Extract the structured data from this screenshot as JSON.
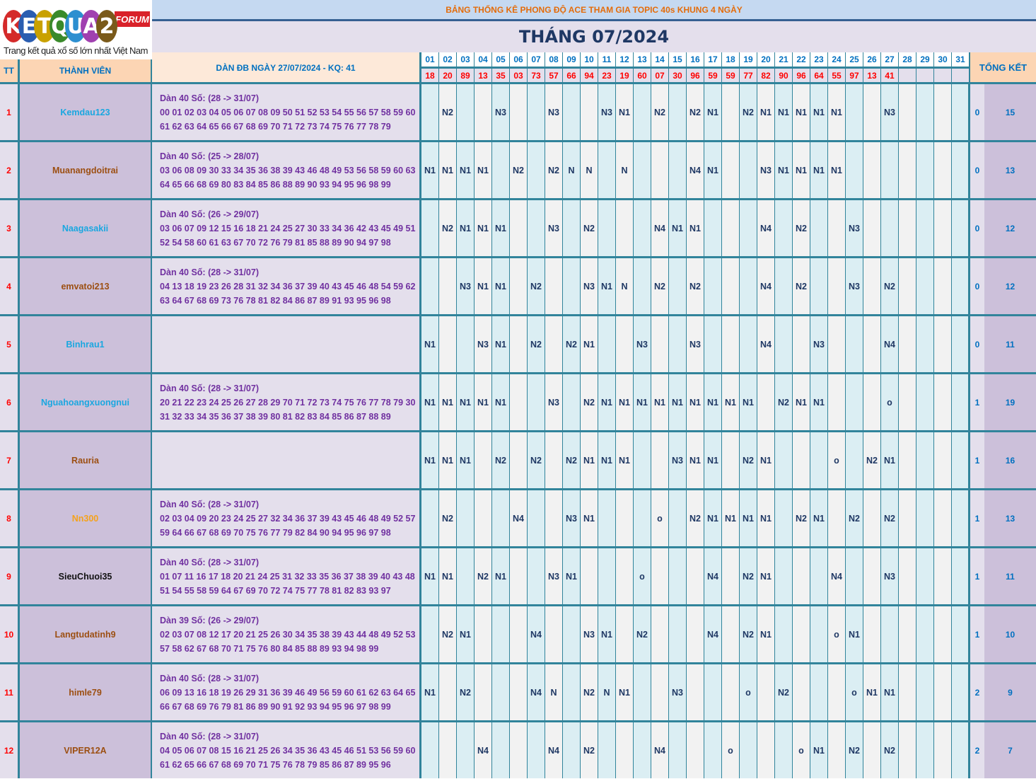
{
  "logo": {
    "letters": [
      "K",
      "E",
      "T",
      "Q",
      "U",
      "A",
      "2"
    ],
    "colors": [
      "#d42a2a",
      "#2a5db0",
      "#c9a100",
      "#3a8a2a",
      "#2c8fd0",
      "#a040b0",
      "#7a5a1a"
    ],
    "badge": "FORUM",
    "tagline": "Trang kết quả xổ số lớn nhất Việt Nam"
  },
  "title": "BẢNG THỐNG KÊ PHONG ĐỘ ACE THAM GIA TOPIC 40s KHUNG 4 NGÀY",
  "month": "THÁNG 07/2024",
  "headers": {
    "tt": "TT",
    "member": "THÀNH VIÊN",
    "dan": "DÀN ĐB NGÀY 27/07/2024 - KQ: 41",
    "summary": "TỔNG KẾT"
  },
  "days": [
    "01",
    "02",
    "03",
    "04",
    "05",
    "06",
    "07",
    "08",
    "09",
    "10",
    "11",
    "12",
    "13",
    "14",
    "15",
    "16",
    "17",
    "18",
    "19",
    "20",
    "21",
    "22",
    "23",
    "24",
    "25",
    "26",
    "27",
    "28",
    "29",
    "30",
    "31"
  ],
  "results": [
    "18",
    "20",
    "89",
    "13",
    "35",
    "03",
    "73",
    "57",
    "66",
    "94",
    "23",
    "19",
    "60",
    "07",
    "30",
    "96",
    "59",
    "59",
    "77",
    "82",
    "90",
    "96",
    "64",
    "55",
    "97",
    "13",
    "41",
    "",
    "",
    "",
    ""
  ],
  "colors": {
    "cyan": "#1aa7e0",
    "brown": "#9c4f12",
    "orange": "#f5a21b",
    "black": "#111111",
    "mark": "#1f3864",
    "result": "#ff0000",
    "day": "#0070c0",
    "grid": "#31849b"
  },
  "rows": [
    {
      "tt": "1",
      "name": "Kemdau123",
      "color": "cyan",
      "dan_title": "Dàn 40 Số: (28 -> 31/07)",
      "dan_l1": "00 01 02 03 04 05 06 07 08 09 50 51 52 53 54 55 56 57 58 59 60",
      "dan_l2": "61 62 63 64 65 66 67 68 69 70 71 72 73 74 75 76 77 78 79",
      "marks": {
        "2": "N2",
        "5": "N3",
        "8": "N3",
        "11": "N3",
        "12": "N1",
        "14": "N2",
        "16": "N2",
        "17": "N1",
        "19": "N2",
        "20": "N1",
        "21": "N1",
        "22": "N1",
        "23": "N1",
        "24": "N1",
        "27": "N3"
      },
      "zero": "0",
      "total": "15"
    },
    {
      "tt": "2",
      "name": "Muanangdoitrai",
      "color": "brown",
      "dan_title": "Dàn 40 Số: (25 -> 28/07)",
      "dan_l1": "03 06 08 09 30 33 34 35 36 38 39 43 46 48 49 53 56 58 59 60 63",
      "dan_l2": "64 65 66 68 69 80 83 84 85 86 88 89 90 93 94 95 96 98 99",
      "marks": {
        "1": "N1",
        "2": "N1",
        "3": "N1",
        "4": "N1",
        "6": "N2",
        "8": "N2",
        "9": "N",
        "10": "N",
        "12": "N",
        "16": "N4",
        "17": "N1",
        "20": "N3",
        "21": "N1",
        "22": "N1",
        "23": "N1",
        "24": "N1"
      },
      "zero": "0",
      "total": "13"
    },
    {
      "tt": "3",
      "name": "Naagasakii",
      "color": "cyan",
      "dan_title": "Dàn 40 Số: (26 -> 29/07)",
      "dan_l1": "03 06 07 09 12 15 16 18 21 24 25 27 30 33 34 36 42 43 45 49 51",
      "dan_l2": "52 54 58 60 61 63 67 70 72 76 79 81 85 88 89 90 94 97 98",
      "marks": {
        "2": "N2",
        "3": "N1",
        "4": "N1",
        "5": "N1",
        "8": "N3",
        "10": "N2",
        "14": "N4",
        "15": "N1",
        "16": "N1",
        "20": "N4",
        "22": "N2",
        "25": "N3"
      },
      "zero": "0",
      "total": "12"
    },
    {
      "tt": "4",
      "name": "emvatoi213",
      "color": "brown",
      "dan_title": "Dàn 40 Số: (28 -> 31/07)",
      "dan_l1": "04 13 18 19 23 26 28 31 32 34 36 37 39 40 43 45 46 48 54 59 62",
      "dan_l2": "63 64 67 68 69 73 76 78 81 82 84 86 87 89 91 93 95 96 98",
      "marks": {
        "3": "N3",
        "4": "N1",
        "5": "N1",
        "7": "N2",
        "10": "N3",
        "11": "N1",
        "12": "N",
        "14": "N2",
        "16": "N2",
        "20": "N4",
        "22": "N2",
        "25": "N3",
        "27": "N2"
      },
      "zero": "0",
      "total": "12"
    },
    {
      "tt": "5",
      "name": "Binhrau1",
      "color": "cyan",
      "dan_title": "",
      "dan_l1": "",
      "dan_l2": "",
      "marks": {
        "1": "N1",
        "4": "N3",
        "5": "N1",
        "7": "N2",
        "9": "N2",
        "10": "N1",
        "13": "N3",
        "16": "N3",
        "20": "N4",
        "23": "N3",
        "27": "N4"
      },
      "zero": "0",
      "total": "11"
    },
    {
      "tt": "6",
      "name": "Nguahoangxuongnui",
      "color": "cyan",
      "dan_title": "Dàn 40 Số: (28 -> 31/07)",
      "dan_l1": "20 21 22 23 24 25 26 27 28 29 70 71 72 73 74 75 76 77 78 79 30",
      "dan_l2": "31 32 33 34 35 36 37 38 39 80 81 82 83 84 85 86 87 88 89",
      "marks": {
        "1": "N1",
        "2": "N1",
        "3": "N1",
        "4": "N1",
        "5": "N1",
        "8": "N3",
        "10": "N2",
        "11": "N1",
        "12": "N1",
        "13": "N1",
        "14": "N1",
        "15": "N1",
        "16": "N1",
        "17": "N1",
        "18": "N1",
        "19": "N1",
        "21": "N2",
        "22": "N1",
        "23": "N1",
        "27": "o"
      },
      "zero": "1",
      "total": "19"
    },
    {
      "tt": "7",
      "name": "Rauria",
      "color": "brown",
      "dan_title": "",
      "dan_l1": "",
      "dan_l2": "",
      "marks": {
        "1": "N1",
        "2": "N1",
        "3": "N1",
        "5": "N2",
        "7": "N2",
        "9": "N2",
        "10": "N1",
        "11": "N1",
        "12": "N1",
        "15": "N3",
        "16": "N1",
        "17": "N1",
        "19": "N2",
        "20": "N1",
        "24": "o",
        "26": "N2",
        "27": "N1"
      },
      "zero": "1",
      "total": "16"
    },
    {
      "tt": "8",
      "name": "Nn300",
      "color": "orange",
      "dan_title": "Dàn 40 Số: (28 -> 31/07)",
      "dan_l1": "02 03 04 09 20 23 24 25 27 32 34 36 37 39 43 45 46 48 49 52 57",
      "dan_l2": "59 64 66 67 68 69 70 75 76 77 79 82 84 90 94 95 96 97 98",
      "marks": {
        "2": "N2",
        "6": "N4",
        "9": "N3",
        "10": "N1",
        "14": "o",
        "16": "N2",
        "17": "N1",
        "18": "N1",
        "19": "N1",
        "20": "N1",
        "22": "N2",
        "23": "N1",
        "25": "N2",
        "27": "N2"
      },
      "zero": "1",
      "total": "13"
    },
    {
      "tt": "9",
      "name": "SieuChuoi35",
      "color": "black",
      "dan_title": "Dàn 40 Số: (28 -> 31/07)",
      "dan_l1": "01 07 11 16 17 18 20 21 24 25 31 32 33 35 36 37 38 39 40 43 48",
      "dan_l2": "51 54 55 58 59 64 67 69 70 72 74 75 77 78 81 82 83 93 97",
      "marks": {
        "1": "N1",
        "2": "N1",
        "4": "N2",
        "5": "N1",
        "8": "N3",
        "9": "N1",
        "13": "o",
        "17": "N4",
        "19": "N2",
        "20": "N1",
        "24": "N4",
        "27": "N3"
      },
      "zero": "1",
      "total": "11"
    },
    {
      "tt": "10",
      "name": "Langtudatinh9",
      "color": "brown",
      "dan_title": "Dàn 39 Số: (26 -> 29/07)",
      "dan_l1": "02 03 07 08 12 17 20 21 25 26 30 34 35 38 39 43 44 48 49 52 53",
      "dan_l2": "57 58 62 67 68 70 71 75 76 80 84 85 88 89 93 94 98 99",
      "marks": {
        "2": "N2",
        "3": "N1",
        "7": "N4",
        "10": "N3",
        "11": "N1",
        "13": "N2",
        "17": "N4",
        "19": "N2",
        "20": "N1",
        "24": "o",
        "25": "N1"
      },
      "zero": "1",
      "total": "10"
    },
    {
      "tt": "11",
      "name": "himle79",
      "color": "brown",
      "dan_title": "Dàn 40 Số: (28 -> 31/07)",
      "dan_l1": "06 09 13 16 18 19 26 29 31 36 39 46 49 56 59 60 61 62 63 64 65",
      "dan_l2": "66 67 68 69 76 79 81 86 89 90 91 92 93 94 95 96 97 98 99",
      "marks": {
        "1": "N1",
        "3": "N2",
        "7": "N4",
        "8": "N",
        "10": "N2",
        "11": "N",
        "12": "N1",
        "15": "N3",
        "19": "o",
        "21": "N2",
        "25": "o",
        "26": "N1",
        "27": "N1"
      },
      "zero": "2",
      "total": "9"
    },
    {
      "tt": "12",
      "name": "VIPER12A",
      "color": "brown",
      "dan_title": "Dàn 40 Số: (28 -> 31/07)",
      "dan_l1": "04 05 06 07 08 15 16 21 25 26 34 35 36 43 45 46 51 53 56 59 60",
      "dan_l2": "61 62 65 66 67 68 69 70 71 75 76 78 79 85 86 87 89 95 96",
      "marks": {
        "4": "N4",
        "8": "N4",
        "10": "N2",
        "14": "N4",
        "18": "o",
        "22": "o",
        "23": "N1",
        "25": "N2",
        "27": "N2"
      },
      "zero": "2",
      "total": "7"
    }
  ]
}
